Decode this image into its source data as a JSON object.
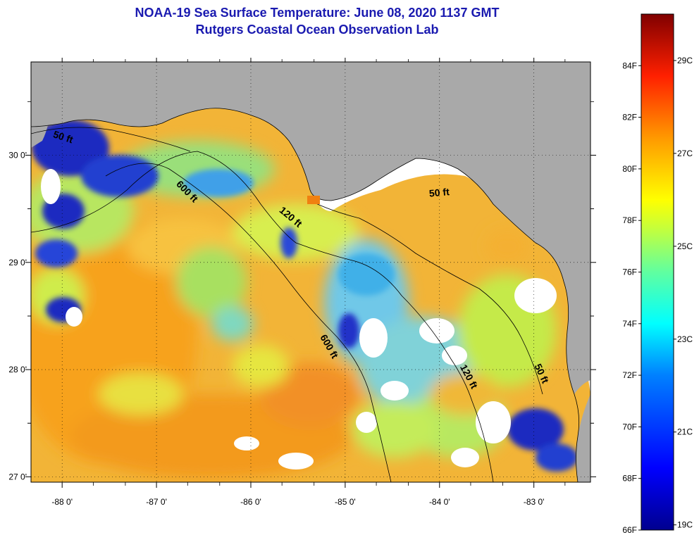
{
  "header": {
    "title": "NOAA-19 Sea Surface Temperature:  June 08, 2020 1137 GMT",
    "subtitle": "Rutgers Coastal Ocean Observation Lab"
  },
  "map": {
    "lon_range": [
      -88.33,
      -82.4
    ],
    "lat_range": [
      26.95,
      30.87
    ],
    "lon_ticks": [
      {
        "value": -88,
        "label": "-88 0'"
      },
      {
        "value": -87,
        "label": "-87 0'"
      },
      {
        "value": -86,
        "label": "-86 0'"
      },
      {
        "value": -85,
        "label": "-85 0'"
      },
      {
        "value": -84,
        "label": "-84 0'"
      },
      {
        "value": -83,
        "label": "-83 0'"
      }
    ],
    "lat_ticks": [
      {
        "value": 30,
        "label": "30 0'"
      },
      {
        "value": 29,
        "label": "29 0'"
      },
      {
        "value": 28,
        "label": "28 0'"
      },
      {
        "value": 27,
        "label": "27 0'"
      }
    ],
    "contour_labels": [
      {
        "text": "50 ft",
        "lon": -88.0,
        "lat": 30.14,
        "angle": 18
      },
      {
        "text": "600 ft",
        "lon": -86.7,
        "lat": 29.64,
        "angle": 45
      },
      {
        "text": "120 ft",
        "lon": -85.6,
        "lat": 29.4,
        "angle": 40
      },
      {
        "text": "50 ft",
        "lon": -84.0,
        "lat": 29.62,
        "angle": -5
      },
      {
        "text": "600 ft",
        "lon": -85.2,
        "lat": 28.2,
        "angle": 60
      },
      {
        "text": "120 ft",
        "lon": -83.72,
        "lat": 27.92,
        "angle": 62
      },
      {
        "text": "50 ft",
        "lon": -82.95,
        "lat": 27.95,
        "angle": 65
      }
    ]
  },
  "colorbar": {
    "min_f": 66,
    "max_f": 86,
    "fahrenheit_labels": [
      {
        "value": 84,
        "label": "84F"
      },
      {
        "value": 82,
        "label": "82F"
      },
      {
        "value": 80,
        "label": "80F"
      },
      {
        "value": 78,
        "label": "78F"
      },
      {
        "value": 76,
        "label": "76F"
      },
      {
        "value": 74,
        "label": "74F"
      },
      {
        "value": 72,
        "label": "72F"
      },
      {
        "value": 70,
        "label": "70F"
      },
      {
        "value": 68,
        "label": "68F"
      },
      {
        "value": 66,
        "label": "66F"
      }
    ],
    "celsius_labels": [
      {
        "value_f": 84.2,
        "label": "29C"
      },
      {
        "value_f": 80.6,
        "label": "27C"
      },
      {
        "value_f": 77.0,
        "label": "25C"
      },
      {
        "value_f": 73.4,
        "label": "23C"
      },
      {
        "value_f": 69.8,
        "label": "21C"
      },
      {
        "value_f": 66.2,
        "label": "19C"
      }
    ]
  },
  "colors": {
    "land": "#a9a9a9",
    "cloud": "#ffffff",
    "cold": "#0a0aa0",
    "warm": "#f5a020",
    "title": "#1a1ab0"
  }
}
